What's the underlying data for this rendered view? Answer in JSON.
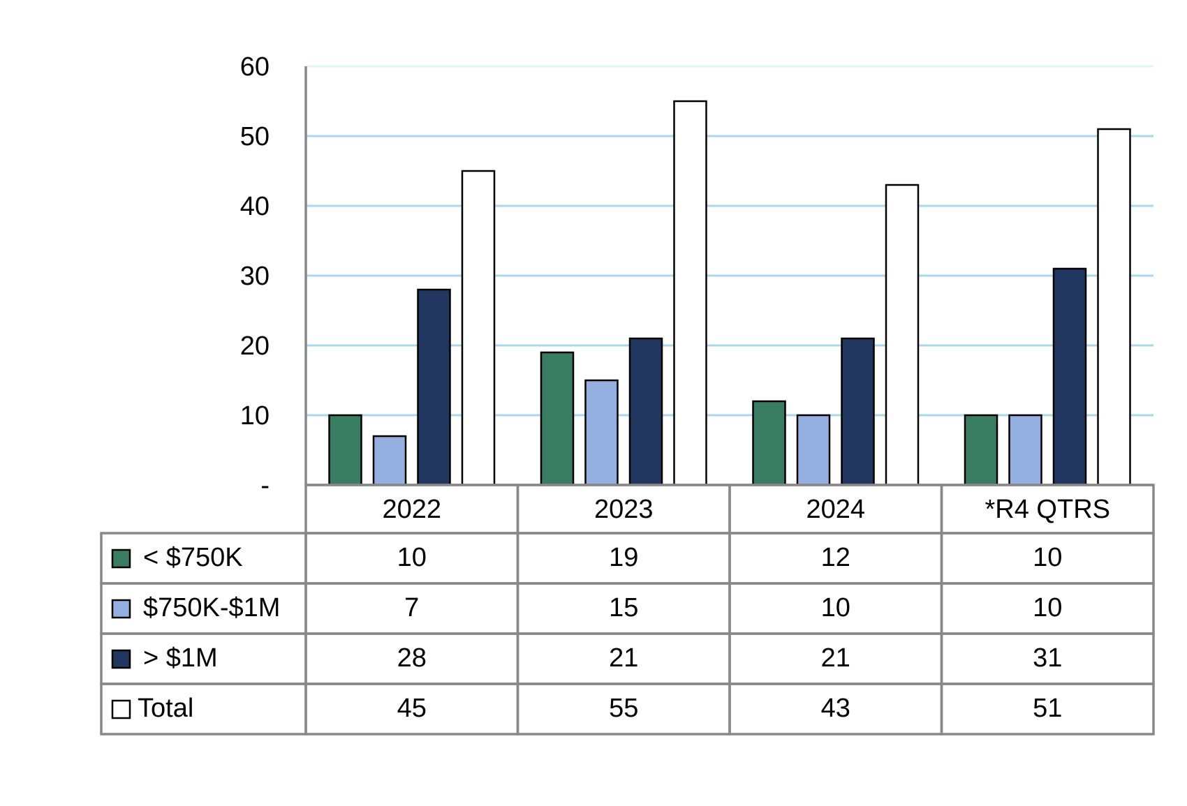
{
  "chart_data": {
    "type": "bar",
    "categories": [
      "2022",
      "2023",
      "2024",
      "*R4 QTRS"
    ],
    "series": [
      {
        "name": "< $750K",
        "values": [
          10,
          19,
          12,
          10
        ],
        "color": "#3A7D62"
      },
      {
        "name": "$750K-$1M",
        "values": [
          7,
          15,
          10,
          10
        ],
        "color": "#95B0E0"
      },
      {
        "name": "> $1M",
        "values": [
          28,
          21,
          21,
          31
        ],
        "color": "#22375F"
      },
      {
        "name": "Total",
        "values": [
          45,
          55,
          43,
          51
        ],
        "color": "#FFFFFF"
      }
    ],
    "ylim": [
      0,
      60
    ],
    "yticks": [
      {
        "value": 0,
        "label": "-"
      },
      {
        "value": 10,
        "label": "10"
      },
      {
        "value": 20,
        "label": "20"
      },
      {
        "value": 30,
        "label": "30"
      },
      {
        "value": 40,
        "label": "40"
      },
      {
        "value": 50,
        "label": "50"
      },
      {
        "value": 60,
        "label": "60"
      }
    ],
    "grid": true,
    "grid_color": "#A9D8EE",
    "legend": "data-table",
    "title": "",
    "xlabel": "",
    "ylabel": ""
  }
}
